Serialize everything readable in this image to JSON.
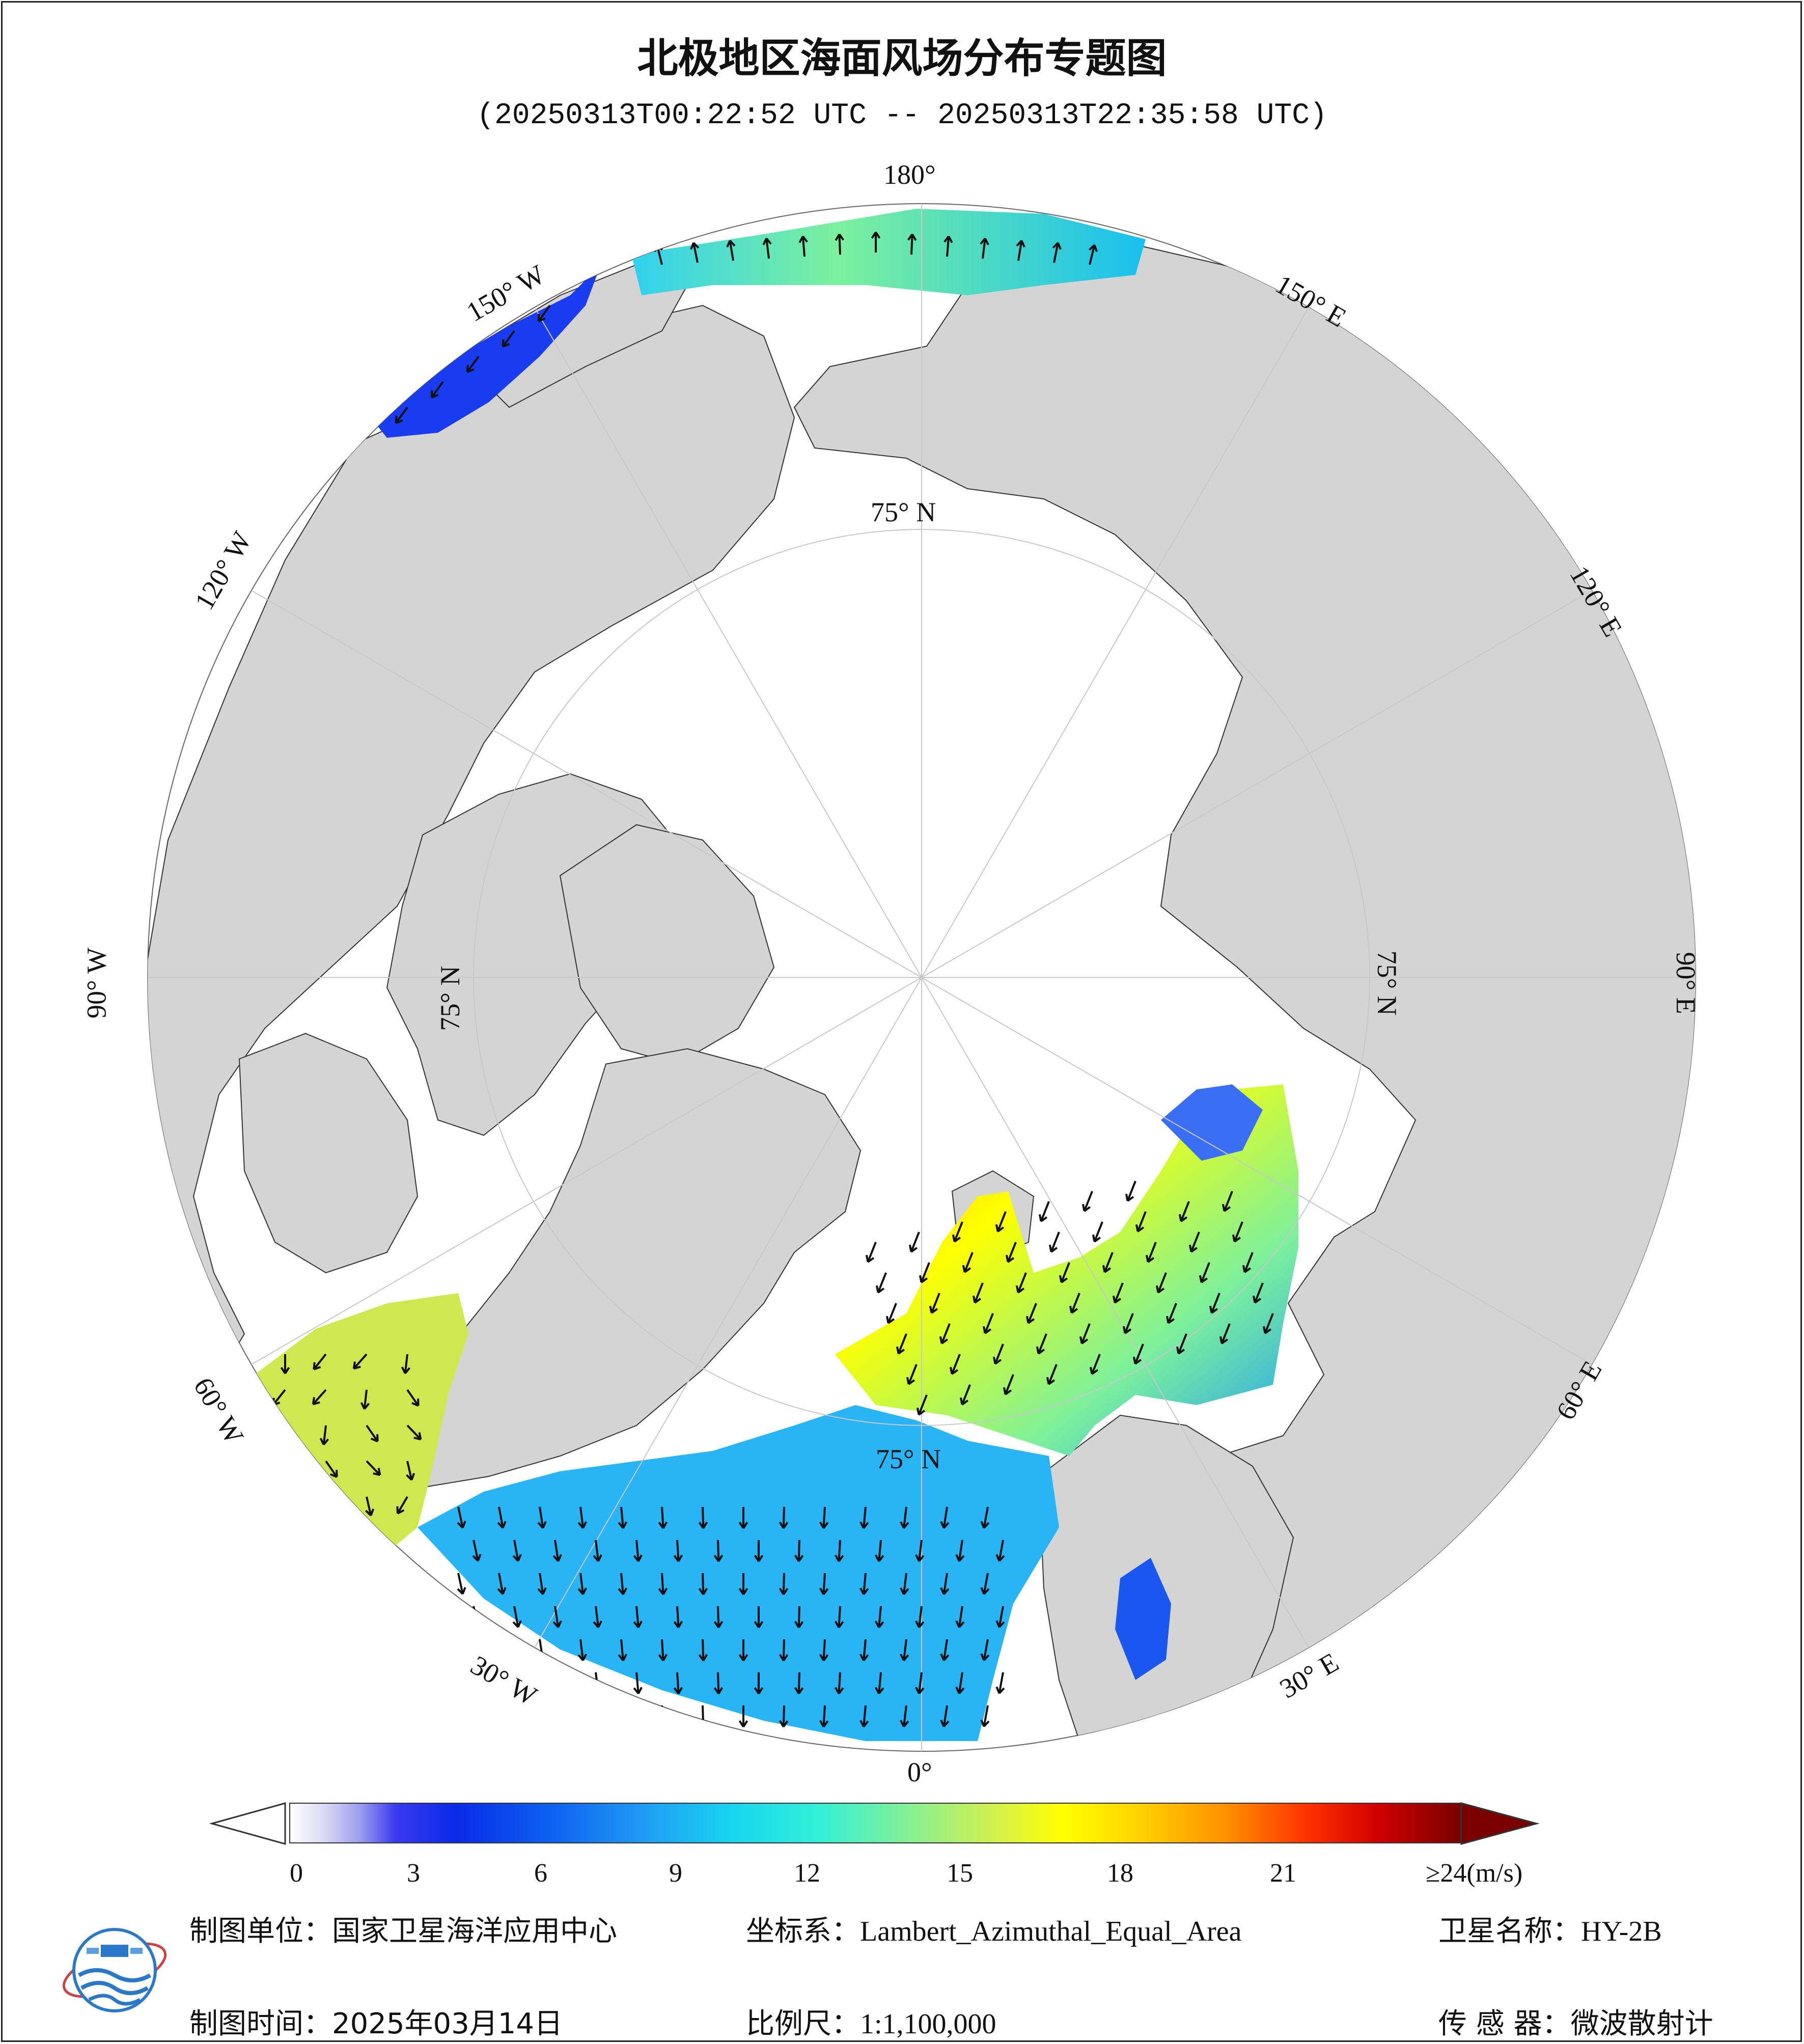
{
  "title": "北极地区海面风场分布专题图",
  "subtitle": "(20250313T00:22:52 UTC -- 20250313T22:35:58 UTC)",
  "map": {
    "projection_labels": {
      "lon_180": "180°",
      "lon_150w": "150° W",
      "lon_120w": "120° W",
      "lon_90w": "90° W",
      "lon_60w": "60° W",
      "lon_30w": "30° W",
      "lon_0": "0°",
      "lon_30e": "30° E",
      "lon_60e": "60° E",
      "lon_90e": "90° E",
      "lon_120e": "120° E",
      "lon_150e": "150° E",
      "lat_75n_top": "75° N",
      "lat_75n_left": "75° N",
      "lat_75n_right": "75° N",
      "lat_75n_bottom": "75° N"
    },
    "colors": {
      "land": "#d4d4d4",
      "ocean_ice": "#ffffff",
      "grid": "#c8c8c8"
    }
  },
  "colorbar": {
    "ticks": [
      "0",
      "3",
      "6",
      "9",
      "12",
      "15",
      "18",
      "21",
      "≥24(m/s)"
    ],
    "min": 0,
    "max": 24,
    "unit": "m/s"
  },
  "footer": {
    "org_label": "制图单位：国家卫星海洋应用中心",
    "date_label": "制图时间：2025年03月14日",
    "crs_label": "坐标系：",
    "crs_value": "Lambert_Azimuthal_Equal_Area",
    "scale_label": "比例尺：",
    "scale_value": "1:1,100,000",
    "satellite_label": "卫星名称：",
    "satellite_value": "HY-2B",
    "sensor_label": "传 感 器：微波散射计"
  }
}
